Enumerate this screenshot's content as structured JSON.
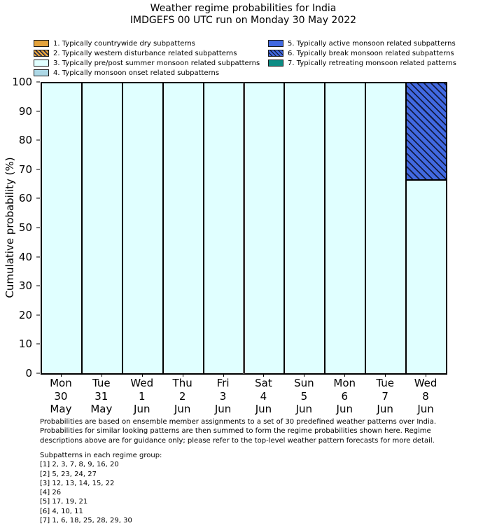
{
  "title": {
    "line1": "Weather regime probabilities for India",
    "line2": "IMDGEFS 00 UTC run on Monday 30 May 2022"
  },
  "legend": {
    "items": [
      {
        "regime": 1,
        "label": "1. Typically countrywide dry subpatterns",
        "color": "#E3A33D",
        "hatch": false
      },
      {
        "regime": 2,
        "label": "2. Typically western disturbance related subpatterns",
        "color": "#E3A33D",
        "hatch": true
      },
      {
        "regime": 3,
        "label": "3. Typically pre/post summer monsoon related subpatterns",
        "color": "#E0FFFF",
        "hatch": false
      },
      {
        "regime": 4,
        "label": "4. Typically monsoon onset related subpatterns",
        "color": "#ADD8E6",
        "hatch": false
      },
      {
        "regime": 5,
        "label": "5. Typically active monsoon related subpatterns",
        "color": "#4169E1",
        "hatch": false
      },
      {
        "regime": 6,
        "label": "6. Typically break monsoon related subpatterns",
        "color": "#4169E1",
        "hatch": true
      },
      {
        "regime": 7,
        "label": "7. Typically retreating monsoon related patterns",
        "color": "#0D8C84",
        "hatch": false
      }
    ]
  },
  "chart_data": {
    "type": "bar",
    "stacked": true,
    "ylabel": "Cumulative probability (%)",
    "ylim": [
      0,
      100
    ],
    "yticks": [
      0,
      10,
      20,
      30,
      40,
      50,
      60,
      70,
      80,
      90,
      100
    ],
    "grid": false,
    "legend_position": "top",
    "categories": [
      {
        "dow": "Mon",
        "day": "30",
        "month": "May"
      },
      {
        "dow": "Tue",
        "day": "31",
        "month": "May"
      },
      {
        "dow": "Wed",
        "day": "1",
        "month": "Jun"
      },
      {
        "dow": "Thu",
        "day": "2",
        "month": "Jun"
      },
      {
        "dow": "Fri",
        "day": "3",
        "month": "Jun"
      },
      {
        "dow": "Sat",
        "day": "4",
        "month": "Jun"
      },
      {
        "dow": "Sun",
        "day": "5",
        "month": "Jun"
      },
      {
        "dow": "Mon",
        "day": "6",
        "month": "Jun"
      },
      {
        "dow": "Tue",
        "day": "7",
        "month": "Jun"
      },
      {
        "dow": "Wed",
        "day": "8",
        "month": "Jun"
      }
    ],
    "series": [
      {
        "regime": 1,
        "name": "Typically countrywide dry subpatterns",
        "color": "#E3A33D",
        "hatch": false,
        "values": [
          0,
          0,
          0,
          0,
          0,
          0,
          0,
          0,
          0,
          0
        ]
      },
      {
        "regime": 2,
        "name": "Typically western disturbance related subpatterns",
        "color": "#E3A33D",
        "hatch": true,
        "values": [
          0,
          0,
          0,
          0,
          0,
          0,
          0,
          0,
          0,
          0
        ]
      },
      {
        "regime": 3,
        "name": "Typically pre/post summer monsoon related subpatterns",
        "color": "#E0FFFF",
        "hatch": false,
        "values": [
          100,
          100,
          100,
          100,
          100,
          100,
          100,
          100,
          100,
          66.7
        ]
      },
      {
        "regime": 4,
        "name": "Typically monsoon onset related subpatterns",
        "color": "#ADD8E6",
        "hatch": false,
        "values": [
          0,
          0,
          0,
          0,
          0,
          0,
          0,
          0,
          0,
          0
        ]
      },
      {
        "regime": 5,
        "name": "Typically active monsoon related subpatterns",
        "color": "#4169E1",
        "hatch": false,
        "values": [
          0,
          0,
          0,
          0,
          0,
          0,
          0,
          0,
          0,
          0
        ]
      },
      {
        "regime": 6,
        "name": "Typically break monsoon related subpatterns",
        "color": "#4169E1",
        "hatch": true,
        "values": [
          0,
          0,
          0,
          0,
          0,
          0,
          0,
          0,
          0,
          33.3
        ]
      },
      {
        "regime": 7,
        "name": "Typically retreating monsoon related patterns",
        "color": "#0D8C84",
        "hatch": false,
        "values": [
          0,
          0,
          0,
          0,
          0,
          0,
          0,
          0,
          0,
          0
        ]
      }
    ]
  },
  "footnote": {
    "lines": [
      "Probabilities are based on ensemble member assignments to a set of 30 predefined weather patterns over India.",
      "Probabilities for similar looking patterns are then summed to form the regime probabilities shown here. Regime",
      "descriptions above are for guidance only; please refer to the top-level weather pattern forecasts for more detail."
    ]
  },
  "subpatterns": {
    "heading": "Subpatterns in each regime group:",
    "lines": [
      "[1] 2, 3, 7, 8, 9, 16, 20",
      "[2] 5, 23, 24, 27",
      "[3] 12, 13, 14, 15, 22",
      "[4] 26",
      "[5] 17, 19, 21",
      "[6] 4, 10, 11",
      "[7] 1, 6, 18, 25, 28, 29, 30"
    ]
  }
}
